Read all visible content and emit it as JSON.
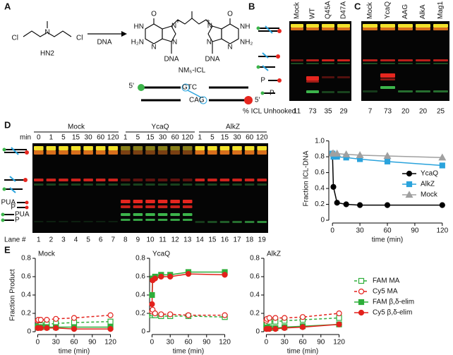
{
  "figure": {
    "a": {
      "label": "A",
      "reactant": "HN2",
      "reagent": "DNA",
      "product": "NM₅-ICL",
      "atoms": [
        "Cl",
        "N",
        "Cl",
        "O",
        "HN",
        "H₂N",
        "N",
        "N",
        "N",
        "DNA",
        "O",
        "NH",
        "NH₂",
        "N",
        "N",
        "N",
        "DNA"
      ],
      "charges": [
        "+",
        "+"
      ],
      "top_strand": [
        "5'",
        "GTC"
      ],
      "bottom_strand": [
        "CAG",
        "5'"
      ]
    },
    "b": {
      "label": "B",
      "lanes": [
        "Mock",
        "WT",
        "Q45A",
        "D47A"
      ],
      "band_labels": [
        "P",
        "P"
      ],
      "unhooked_label": "% ICL Unhooked",
      "unhooked": [
        11,
        73,
        35,
        29
      ]
    },
    "c": {
      "label": "C",
      "lanes": [
        "Mock",
        "YcaQ",
        "AAG",
        "AlkA",
        "Mag1"
      ],
      "unhooked": [
        7,
        73,
        20,
        20,
        25
      ]
    },
    "d": {
      "label": "D",
      "min_label": "min",
      "groups": [
        "Mock",
        "YcaQ",
        "AlkZ"
      ],
      "times": [
        0,
        1,
        5,
        15,
        30,
        60,
        120,
        1,
        5,
        15,
        30,
        60,
        120,
        1,
        5,
        15,
        30,
        60,
        120
      ],
      "lane_label": "Lane #",
      "lanes": [
        1,
        2,
        3,
        4,
        5,
        6,
        7,
        8,
        9,
        10,
        11,
        12,
        13,
        14,
        15,
        16,
        17,
        18,
        19
      ],
      "band_labels": [
        "PUA",
        "P",
        "PUA",
        "P"
      ]
    },
    "e": {
      "label": "E"
    }
  },
  "chart_data": [
    {
      "type": "line",
      "x_label": "time (min)",
      "y_label": "Fraction ICL-DNA",
      "x": [
        0,
        1,
        5,
        15,
        30,
        60,
        120
      ],
      "xlim": [
        -4,
        124
      ],
      "xticks": [
        0,
        30,
        60,
        90,
        120
      ],
      "ylim": [
        0,
        1.05
      ],
      "yticks": [
        0,
        0.2,
        0.4,
        0.6,
        0.8,
        {
          "value": 1,
          "label": "1.0"
        }
      ],
      "legend": "right",
      "series": [
        {
          "name": "YcaQ",
          "color": "#000000",
          "marker": "circle",
          "values": [
            0.83,
            0.42,
            0.22,
            0.2,
            0.19,
            0.19,
            0.19
          ]
        },
        {
          "name": "AlkZ",
          "color": "#2aa3dc",
          "marker": "square",
          "values": [
            0.84,
            0.8,
            0.8,
            0.79,
            0.77,
            0.74,
            0.69
          ]
        },
        {
          "name": "Mock",
          "color": "#a0a0a0",
          "marker": "triangle",
          "values": [
            0.84,
            0.84,
            0.84,
            0.83,
            0.82,
            0.81,
            0.79
          ]
        }
      ]
    },
    {
      "type": "line",
      "title": "Mock",
      "x_label": "time (min)",
      "y_label": "Fraction Product",
      "x": [
        0,
        1,
        5,
        15,
        30,
        60,
        120
      ],
      "xlim": [
        -4,
        124
      ],
      "xticks": [
        0,
        30,
        60,
        90,
        120
      ],
      "ylim": [
        0,
        0.8
      ],
      "yticks": [
        0,
        0.2,
        0.4,
        0.6,
        0.8
      ],
      "series": [
        {
          "color": "#2eae3a",
          "marker": "square",
          "filled": false,
          "dashed": true,
          "values": [
            0.05,
            0.06,
            0.07,
            0.08,
            0.09,
            0.1,
            0.11
          ]
        },
        {
          "color": "#e3211c",
          "marker": "circle",
          "filled": false,
          "dashed": true,
          "values": [
            0.12,
            0.13,
            0.13,
            0.13,
            0.14,
            0.15,
            0.18
          ]
        },
        {
          "color": "#2eae3a",
          "marker": "square",
          "filled": true,
          "dashed": false,
          "values": [
            0.05,
            0.05,
            0.05,
            0.05,
            0.05,
            0.05,
            0.05
          ]
        },
        {
          "color": "#e3211c",
          "marker": "circle",
          "filled": true,
          "dashed": false,
          "values": [
            0.04,
            0.04,
            0.04,
            0.04,
            0.04,
            0.03,
            0.03
          ]
        }
      ]
    },
    {
      "type": "line",
      "title": "YcaQ",
      "x_label": "time (min)",
      "x": [
        0,
        1,
        5,
        15,
        30,
        60,
        120
      ],
      "xlim": [
        -4,
        124
      ],
      "xticks": [
        0,
        30,
        60,
        90,
        120
      ],
      "ylim": [
        0,
        0.8
      ],
      "yticks": [
        0,
        0.2,
        0.4,
        0.6,
        0.8
      ],
      "series": [
        {
          "color": "#2eae3a",
          "marker": "square",
          "filled": false,
          "dashed": true,
          "values": [
            0.18,
            0.2,
            0.18,
            0.17,
            0.17,
            0.17,
            0.16
          ]
        },
        {
          "color": "#e3211c",
          "marker": "circle",
          "filled": false,
          "dashed": true,
          "values": [
            0.22,
            0.24,
            0.2,
            0.19,
            0.19,
            0.18,
            0.18
          ]
        },
        {
          "color": "#2eae3a",
          "marker": "square",
          "filled": true,
          "dashed": false,
          "values": [
            0.4,
            0.58,
            0.6,
            0.62,
            0.62,
            0.65,
            0.65
          ]
        },
        {
          "color": "#e3211c",
          "marker": "circle",
          "filled": true,
          "dashed": false,
          "values": [
            0.3,
            0.56,
            0.58,
            0.6,
            0.6,
            0.63,
            0.62
          ]
        }
      ]
    },
    {
      "type": "line",
      "title": "AlkZ",
      "x_label": "time (min)",
      "x": [
        0,
        1,
        5,
        15,
        30,
        60,
        120
      ],
      "xlim": [
        -4,
        124
      ],
      "xticks": [
        0,
        30,
        60,
        90,
        120
      ],
      "ylim": [
        0,
        0.8
      ],
      "yticks": [
        0,
        0.2,
        0.4,
        0.6,
        0.8
      ],
      "legend": "outside-right",
      "series": [
        {
          "name": "FAM MA",
          "color": "#2eae3a",
          "marker": "square",
          "filled": false,
          "dashed": true,
          "values": [
            0.08,
            0.1,
            0.11,
            0.11,
            0.12,
            0.13,
            0.15
          ]
        },
        {
          "name": "Cy5 MA",
          "color": "#e3211c",
          "marker": "circle",
          "filled": false,
          "dashed": true,
          "values": [
            0.12,
            0.14,
            0.15,
            0.15,
            0.15,
            0.16,
            0.2
          ]
        },
        {
          "name": "FAM β,δ-elim",
          "color": "#2eae3a",
          "marker": "square",
          "filled": true,
          "dashed": false,
          "values": [
            0.04,
            0.04,
            0.04,
            0.04,
            0.05,
            0.06,
            0.08
          ]
        },
        {
          "name": "Cy5 β,δ-elim",
          "color": "#e3211c",
          "marker": "circle",
          "filled": true,
          "dashed": false,
          "values": [
            0.03,
            0.03,
            0.03,
            0.03,
            0.04,
            0.05,
            0.08
          ]
        }
      ]
    }
  ]
}
